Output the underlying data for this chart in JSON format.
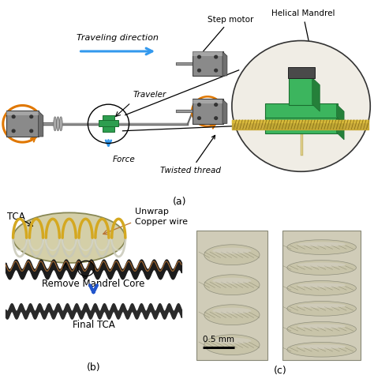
{
  "fig_width": 4.74,
  "fig_height": 4.8,
  "dpi": 100,
  "bg_color": "#ffffff",
  "panel_a_label": "(a)",
  "panel_b_label": "(b)",
  "panel_c_label": "(c)",
  "labels": {
    "traveling_direction": "Traveling direction",
    "step_motor": "Step motor",
    "helical_mandrel": "Helical Mandrel",
    "traveler": "Traveler",
    "twisted_thread": "Twisted thread",
    "force": "Force",
    "tca": "TCA",
    "unwrap_copper": "Unwrap\nCopper wire",
    "remove_mandrel": "Remove Mandrel Core",
    "final_tca": "Final TCA",
    "scale_bar": "0.5 mm"
  },
  "colors": {
    "arrow_blue": "#3399ee",
    "arrow_orange": "#e07700",
    "arrow_dark_blue": "#2255cc",
    "motor_gray": "#8a8a8a",
    "motor_silver": "#c0c0c0",
    "motor_dark": "#404040",
    "shaft_gray": "#999999",
    "shaft_dark": "#666666",
    "traveler_green": "#2d9e4f",
    "mandrel_green": "#3cb55e",
    "mandrel_dark": "#1a6e30",
    "thread_gold": "#c8a832",
    "thread_dark": "#7a6010",
    "coil_dark": "#1a1a1a",
    "coil_mid": "#444444",
    "zoom_bg": "#f0ede5",
    "photo_bg_l": "#b8b4a0",
    "photo_bg_r": "#b0ac98",
    "scale_bar_color": "#000000",
    "text_color": "#000000",
    "copper_color": "#b87333",
    "ellipse_fill": "#d4cfa8",
    "ellipse_stroke": "#888855"
  }
}
